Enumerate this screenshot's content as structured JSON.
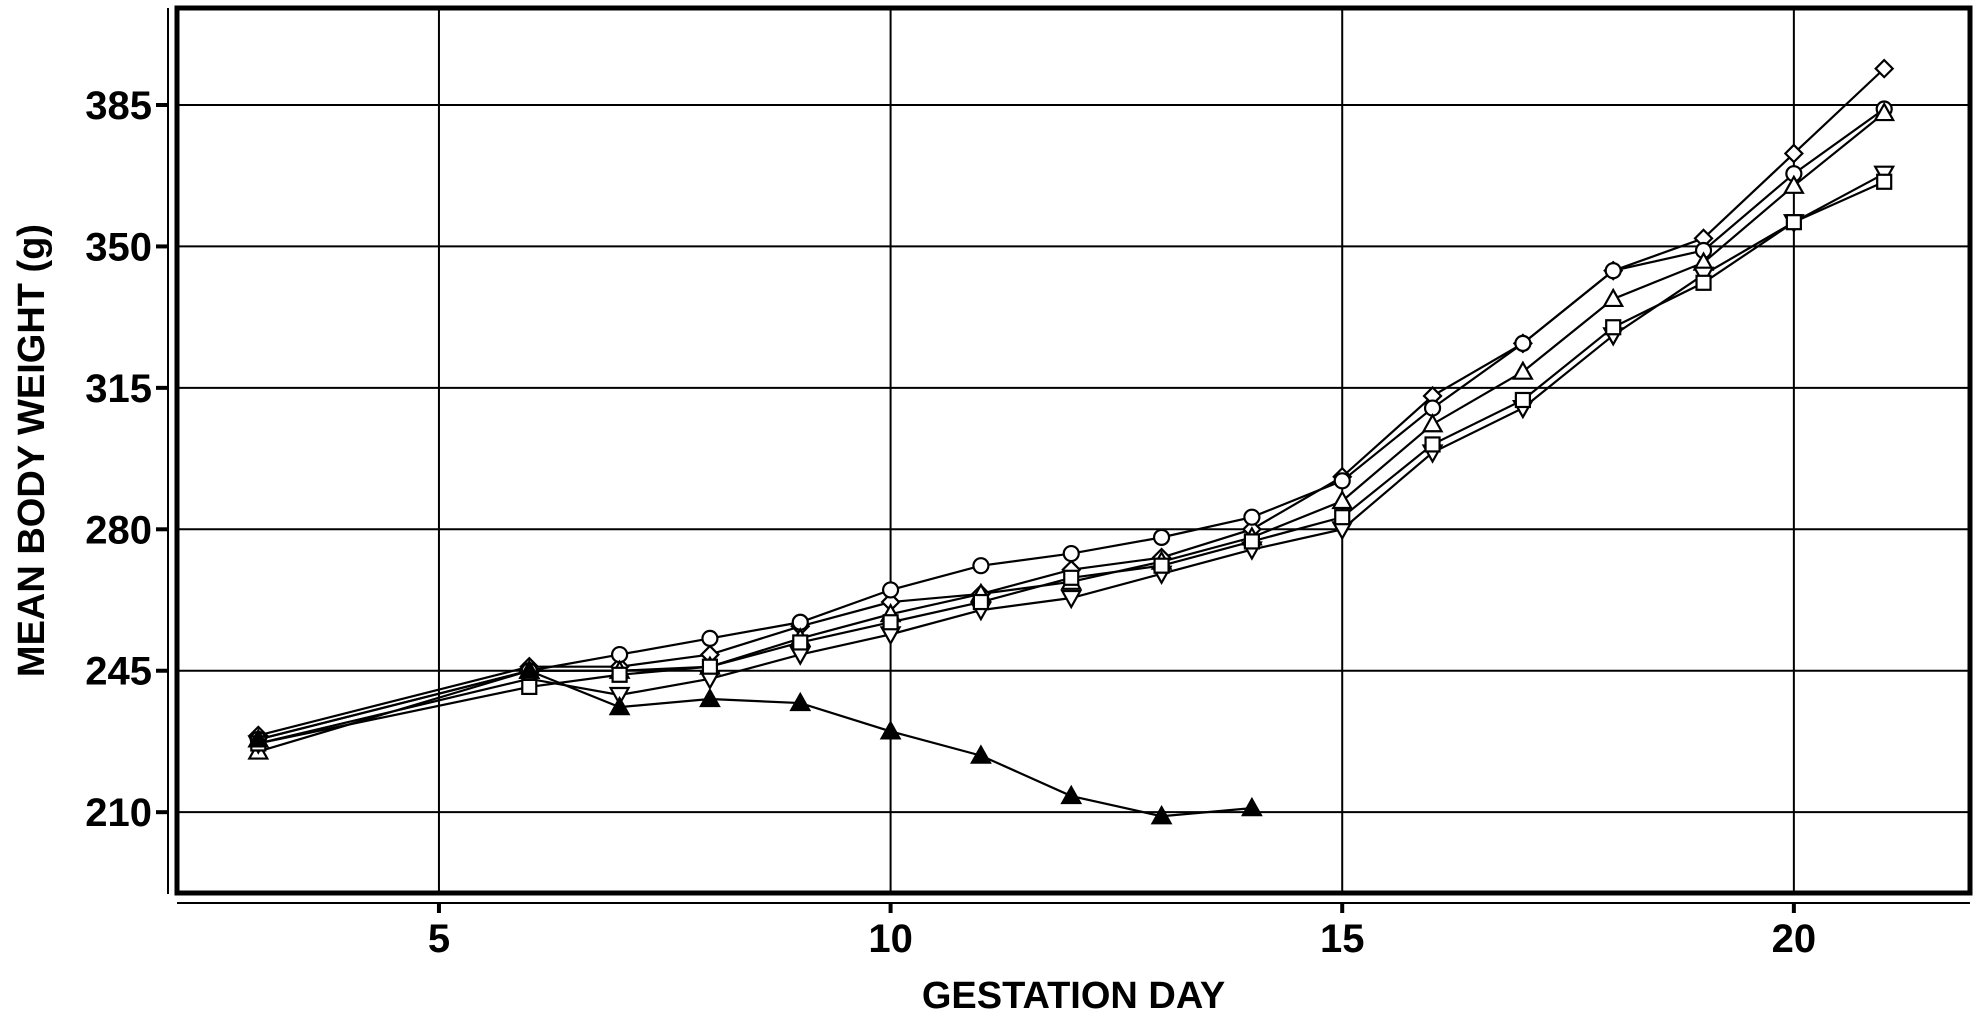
{
  "chart_data": {
    "type": "line",
    "xlabel": "GESTATION DAY",
    "ylabel": "MEAN BODY WEIGHT (g)",
    "xlim": [
      2.1,
      21.95
    ],
    "ylim": [
      190,
      409
    ],
    "x_ticks": [
      5,
      10,
      15,
      20
    ],
    "y_ticks": [
      210,
      245,
      280,
      315,
      350,
      385
    ],
    "grid": true,
    "legend": "none",
    "series": [
      {
        "marker": "diamond",
        "filled": false,
        "x": [
          3,
          6,
          7,
          8,
          9,
          10,
          11,
          12,
          13,
          14,
          15,
          16,
          17,
          18,
          19,
          20,
          21
        ],
        "y": [
          229,
          246,
          246,
          249,
          256,
          262,
          264,
          270,
          273,
          280,
          293,
          313,
          326,
          344,
          352,
          373,
          394
        ]
      },
      {
        "marker": "circle",
        "filled": false,
        "x": [
          3,
          6,
          7,
          8,
          9,
          10,
          11,
          12,
          13,
          14,
          15,
          16,
          17,
          18,
          19,
          20,
          21
        ],
        "y": [
          228,
          245,
          249,
          253,
          257,
          265,
          271,
          274,
          278,
          283,
          292,
          310,
          326,
          344,
          349,
          368,
          384
        ]
      },
      {
        "marker": "triangle-up",
        "filled": false,
        "x": [
          3,
          6,
          7,
          8,
          9,
          10,
          11,
          12,
          13,
          14,
          15,
          16,
          17,
          18,
          19,
          20,
          21
        ],
        "y": [
          225,
          245,
          245,
          246,
          253,
          259,
          264,
          267,
          272,
          278,
          287,
          306,
          319,
          337,
          346,
          365,
          383
        ]
      },
      {
        "marker": "triangle-down",
        "filled": false,
        "x": [
          3,
          6,
          7,
          8,
          9,
          10,
          11,
          12,
          13,
          14,
          15,
          16,
          17,
          18,
          19,
          20,
          21
        ],
        "y": [
          227,
          243,
          239,
          243,
          249,
          254,
          260,
          263,
          269,
          275,
          280,
          299,
          310,
          328,
          343,
          356,
          368
        ]
      },
      {
        "marker": "square",
        "filled": false,
        "x": [
          3,
          6,
          7,
          8,
          9,
          10,
          11,
          12,
          13,
          14,
          15,
          16,
          17,
          18,
          19,
          20,
          21
        ],
        "y": [
          227,
          241,
          244,
          246,
          252,
          257,
          262,
          268,
          271,
          277,
          283,
          301,
          312,
          330,
          341,
          356,
          366
        ]
      },
      {
        "marker": "triangle-up",
        "filled": true,
        "x": [
          3,
          6,
          7,
          8,
          9,
          10,
          11,
          12,
          13,
          14
        ],
        "y": [
          228,
          245,
          236,
          238,
          237,
          230,
          224,
          214,
          209,
          211
        ]
      }
    ]
  }
}
